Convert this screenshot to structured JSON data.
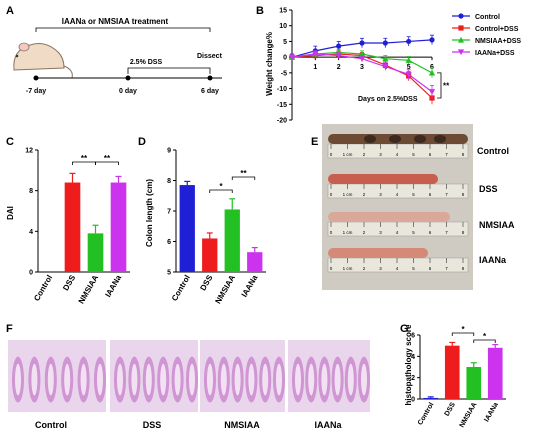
{
  "panels": {
    "A": {
      "letter": "A",
      "treatment": "IAANa or NMSIAA treatment",
      "dss": "2.5% DSS",
      "dissect": "Dissect",
      "days": [
        "-7 day",
        "0 day",
        "6 day"
      ]
    },
    "B": {
      "letter": "B"
    },
    "C": {
      "letter": "C"
    },
    "D": {
      "letter": "D"
    },
    "E": {
      "letter": "E",
      "labels": [
        "Control",
        "DSS",
        "NMSIAA",
        "IAANa"
      ],
      "scale_ticks": [
        "0",
        "1 cm",
        "2",
        "3",
        "4",
        "5",
        "6",
        "7",
        "8"
      ]
    },
    "F": {
      "letter": "F",
      "labels": [
        "Control",
        "DSS",
        "NMSIAA",
        "IAANa"
      ]
    },
    "G": {
      "letter": "G"
    }
  },
  "colors": {
    "control": "#1f1fd6",
    "dss": "#ee1c1c",
    "nmsiaa": "#22c022",
    "iaana": "#cc33ee",
    "stain": "#d9a3d6"
  },
  "chart_data": [
    {
      "type": "line",
      "ylabel": "Weight change%",
      "xlabel": "Days on 2.5%DSS",
      "x": [
        0,
        1,
        2,
        3,
        4,
        5,
        6
      ],
      "xticks": [
        "1",
        "2",
        "3",
        "4",
        "5",
        "6"
      ],
      "yticks": [
        "15",
        "10",
        "5",
        "0",
        "-5",
        "-10",
        "-15",
        "-20"
      ],
      "ylim": [
        -20,
        15
      ],
      "xlim": [
        0,
        6
      ],
      "series": [
        {
          "name": "Control",
          "color": "#1f1fd6",
          "marker": "circle",
          "values": [
            0,
            2,
            3.5,
            4.5,
            4.5,
            5,
            5.5
          ],
          "err": [
            1,
            1.5,
            1.5,
            1.5,
            1.5,
            1.5,
            1.5
          ]
        },
        {
          "name": "Control+DSS",
          "color": "#ee1c1c",
          "marker": "square",
          "values": [
            0,
            0.5,
            1,
            0.5,
            -2.5,
            -6,
            -13
          ],
          "err": [
            0.8,
            1,
            1.2,
            1,
            1.2,
            1.5,
            2
          ]
        },
        {
          "name": "NMSIAA+DSS",
          "color": "#22c022",
          "marker": "triangle",
          "values": [
            0,
            1,
            1.5,
            1,
            -0.5,
            -1,
            -5
          ],
          "err": [
            0.8,
            1,
            1,
            1,
            1,
            1.2,
            1.5
          ]
        },
        {
          "name": "IAANa+DSS",
          "color": "#cc33ee",
          "marker": "triangle-down",
          "values": [
            0,
            1,
            0.5,
            -0.5,
            -3,
            -5.5,
            -11
          ],
          "err": [
            0.8,
            1,
            1,
            1,
            1.2,
            1.5,
            2
          ]
        }
      ],
      "significance": "**"
    },
    {
      "type": "bar",
      "ylabel": "DAI",
      "categories": [
        "Control",
        "DSS",
        "NMSIAA",
        "IAANa"
      ],
      "values": [
        0,
        8.8,
        3.8,
        8.8
      ],
      "errors": [
        0,
        0.9,
        0.8,
        0.6
      ],
      "colors": [
        "#1f1fd6",
        "#ee1c1c",
        "#22c022",
        "#cc33ee"
      ],
      "ylim": [
        0,
        12
      ],
      "yticks": [
        "0",
        "4",
        "8",
        "12"
      ],
      "significance": [
        "**",
        "**"
      ]
    },
    {
      "type": "bar",
      "ylabel": "Colon length (cm)",
      "categories": [
        "Control",
        "DSS",
        "NMSIAA",
        "IAANa"
      ],
      "values": [
        7.85,
        6.1,
        7.05,
        5.65
      ],
      "errors": [
        0.12,
        0.18,
        0.35,
        0.15
      ],
      "colors": [
        "#1f1fd6",
        "#ee1c1c",
        "#22c022",
        "#cc33ee"
      ],
      "ylim": [
        5,
        9
      ],
      "yticks": [
        "5",
        "6",
        "7",
        "8",
        "9"
      ],
      "significance": [
        "*",
        "**"
      ]
    },
    {
      "type": "bar",
      "ylabel": "histopathology score",
      "categories": [
        "Control",
        "DSS",
        "NMSIAA",
        "IAANa"
      ],
      "values": [
        0.1,
        5,
        3,
        4.8
      ],
      "errors": [
        0.1,
        0.3,
        0.4,
        0.3
      ],
      "colors": [
        "#1f1fd6",
        "#ee1c1c",
        "#22c022",
        "#cc33ee"
      ],
      "ylim": [
        0,
        6
      ],
      "yticks": [
        "0",
        "2",
        "4",
        "6"
      ],
      "significance": [
        "*",
        "*"
      ]
    }
  ]
}
